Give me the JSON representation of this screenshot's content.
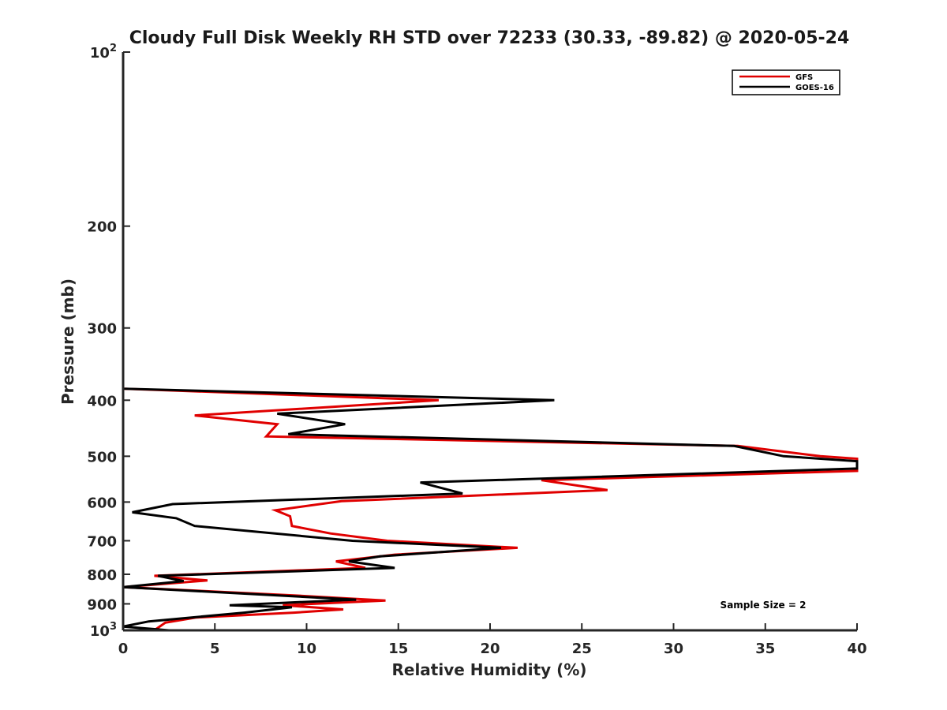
{
  "chart_data": {
    "type": "line",
    "title": "Cloudy Full Disk Weekly RH STD over 72233 (30.33, -89.82) @ 2020-05-24",
    "xlabel": "Relative Humidity (%)",
    "ylabel": "Pressure (mb)",
    "xlim": [
      0,
      40
    ],
    "ylim": [
      100,
      1000
    ],
    "yscale": "log",
    "y_reversed": true,
    "grid": false,
    "legend_position": "top-right",
    "x_ticks": [
      0,
      5,
      10,
      15,
      20,
      25,
      30,
      35,
      40
    ],
    "x_tick_labels": [
      "0",
      "5",
      "10",
      "15",
      "20",
      "25",
      "30",
      "35",
      "40"
    ],
    "y_ticks": [
      100,
      200,
      300,
      400,
      500,
      600,
      700,
      800,
      900,
      1000
    ],
    "y_tick_labels": [
      {
        "base": "10",
        "exp": "2"
      },
      {
        "base": "200",
        "exp": ""
      },
      {
        "base": "300",
        "exp": ""
      },
      {
        "base": "400",
        "exp": ""
      },
      {
        "base": "500",
        "exp": ""
      },
      {
        "base": "600",
        "exp": ""
      },
      {
        "base": "700",
        "exp": ""
      },
      {
        "base": "800",
        "exp": ""
      },
      {
        "base": "900",
        "exp": ""
      },
      {
        "base": "10",
        "exp": "3"
      }
    ],
    "annotation": "Sample Size = 2",
    "series": [
      {
        "name": "GFS",
        "color": "#e00000",
        "points": [
          [
            0,
            100
          ],
          [
            0,
            200
          ],
          [
            0,
            300
          ],
          [
            0,
            350
          ],
          [
            0,
            382
          ],
          [
            17.2,
            400
          ],
          [
            3.9,
            425
          ],
          [
            8.4,
            440
          ],
          [
            7.8,
            462
          ],
          [
            33.5,
            480
          ],
          [
            38,
            500
          ],
          [
            40,
            505
          ],
          [
            40,
            530
          ],
          [
            22.8,
            550
          ],
          [
            26.4,
            572
          ],
          [
            11.9,
            598
          ],
          [
            8.3,
            620
          ],
          [
            9.1,
            635
          ],
          [
            9.2,
            660
          ],
          [
            11.3,
            680
          ],
          [
            14.4,
            700
          ],
          [
            21.5,
            720
          ],
          [
            14.8,
            740
          ],
          [
            11.6,
            760
          ],
          [
            13.2,
            780
          ],
          [
            1.7,
            805
          ],
          [
            4.6,
            820
          ],
          [
            0,
            842
          ],
          [
            9.3,
            870
          ],
          [
            14.3,
            888
          ],
          [
            8.7,
            905
          ],
          [
            12.0,
            920
          ],
          [
            9.3,
            932
          ],
          [
            4.0,
            950
          ],
          [
            2.3,
            970
          ],
          [
            1.7,
            1000
          ]
        ]
      },
      {
        "name": "GOES-16",
        "color": "#000000",
        "points": [
          [
            0,
            100
          ],
          [
            0,
            200
          ],
          [
            0,
            300
          ],
          [
            0,
            350
          ],
          [
            0,
            382
          ],
          [
            23.5,
            400
          ],
          [
            8.4,
            422
          ],
          [
            12.1,
            440
          ],
          [
            9.0,
            458
          ],
          [
            33.3,
            480
          ],
          [
            36,
            500
          ],
          [
            40,
            510
          ],
          [
            40,
            525
          ],
          [
            16.2,
            555
          ],
          [
            18.5,
            580
          ],
          [
            2.7,
            605
          ],
          [
            0.5,
            625
          ],
          [
            2.9,
            640
          ],
          [
            3.9,
            660
          ],
          [
            12.5,
            700
          ],
          [
            20.6,
            720
          ],
          [
            14.0,
            745
          ],
          [
            12.3,
            760
          ],
          [
            14.8,
            780
          ],
          [
            1.9,
            805
          ],
          [
            3.3,
            822
          ],
          [
            0,
            842
          ],
          [
            12.7,
            885
          ],
          [
            5.8,
            905
          ],
          [
            9.2,
            912
          ],
          [
            6.6,
            932
          ],
          [
            1.4,
            965
          ],
          [
            0,
            985
          ],
          [
            2.5,
            1000
          ]
        ]
      }
    ]
  }
}
